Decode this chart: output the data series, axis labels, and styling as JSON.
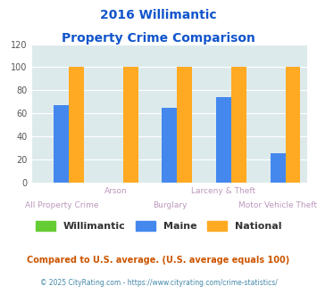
{
  "title_line1": "2016 Willimantic",
  "title_line2": "Property Crime Comparison",
  "categories": [
    "All Property Crime",
    "Arson",
    "Burglary",
    "Larceny & Theft",
    "Motor Vehicle Theft"
  ],
  "categories_row1": [
    "",
    "Arson",
    "",
    "Larceny & Theft",
    ""
  ],
  "categories_row2": [
    "All Property Crime",
    "",
    "Burglary",
    "",
    "Motor Vehicle Theft"
  ],
  "series": {
    "Willimantic": [
      0,
      0,
      0,
      0,
      0
    ],
    "Maine": [
      67,
      0,
      65,
      74,
      25
    ],
    "National": [
      100,
      100,
      100,
      100,
      100
    ]
  },
  "colors": {
    "Willimantic": "#66cc33",
    "Maine": "#4488ee",
    "National": "#ffaa22"
  },
  "ylim": [
    0,
    120
  ],
  "yticks": [
    0,
    20,
    40,
    60,
    80,
    100,
    120
  ],
  "title_color": "#1155cc",
  "xlabel_color": "#bb99bb",
  "legend_label_color": "#333333",
  "footnote1": "Compared to U.S. average. (U.S. average equals 100)",
  "footnote2": "© 2025 CityRating.com - https://www.cityrating.com/crime-statistics/",
  "bg_color": "#ddeaec",
  "bar_width": 0.28,
  "footnote1_color": "#cc5500",
  "footnote2_color": "#4488aa"
}
